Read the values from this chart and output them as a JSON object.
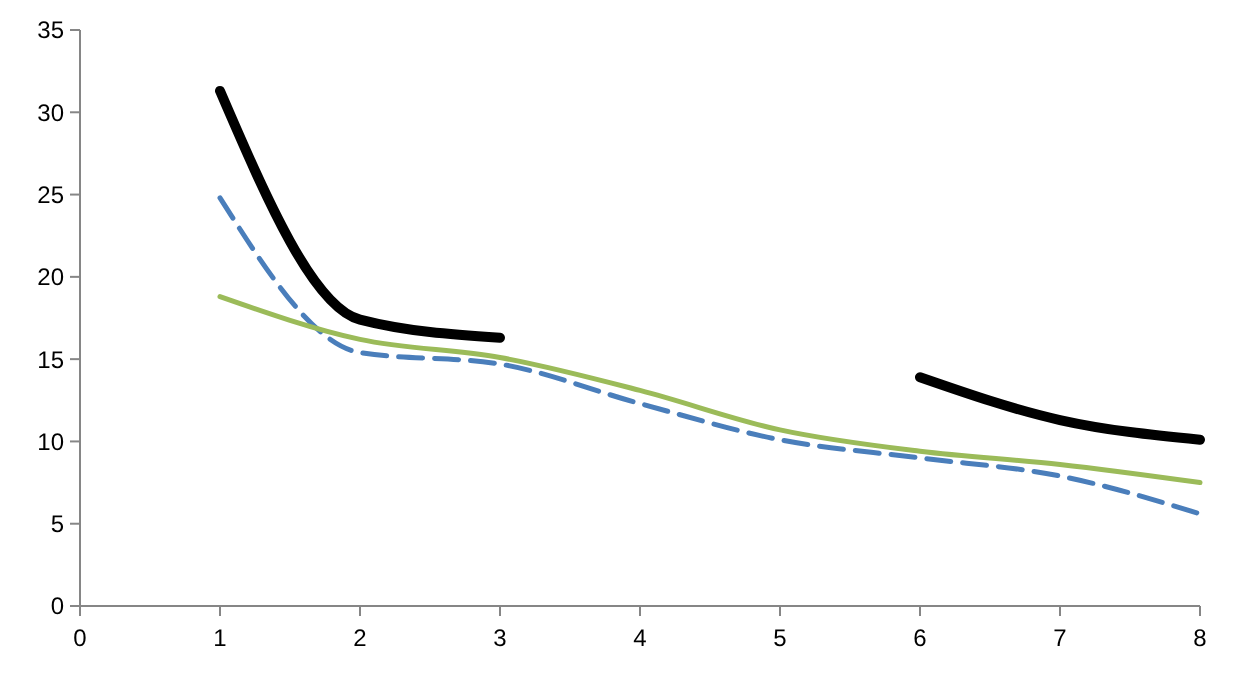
{
  "chart_data": {
    "type": "line",
    "x": [
      1,
      2,
      3,
      4,
      5,
      6,
      7,
      8
    ],
    "xlim": [
      0,
      8
    ],
    "xticks": [
      0,
      1,
      2,
      3,
      4,
      5,
      6,
      7,
      8
    ],
    "ylim": [
      0,
      35
    ],
    "yticks": [
      0,
      5,
      10,
      15,
      20,
      25,
      30,
      35
    ],
    "grid": false,
    "marker": "none",
    "series": [
      {
        "color": "#000000",
        "line_style": "solid",
        "values": [
          31.3,
          17.4,
          16.3,
          null,
          null,
          13.9,
          11.3,
          10.1
        ]
      },
      {
        "color": "#4a7ebb",
        "line_style": "dashed",
        "values": [
          24.8,
          15.4,
          14.7,
          12.3,
          10.1,
          9.0,
          7.9,
          5.6
        ]
      },
      {
        "color": "#9bbb59",
        "line_style": "solid",
        "values": [
          18.8,
          16.2,
          15.1,
          13.1,
          10.7,
          9.4,
          8.6,
          7.5
        ]
      }
    ]
  }
}
